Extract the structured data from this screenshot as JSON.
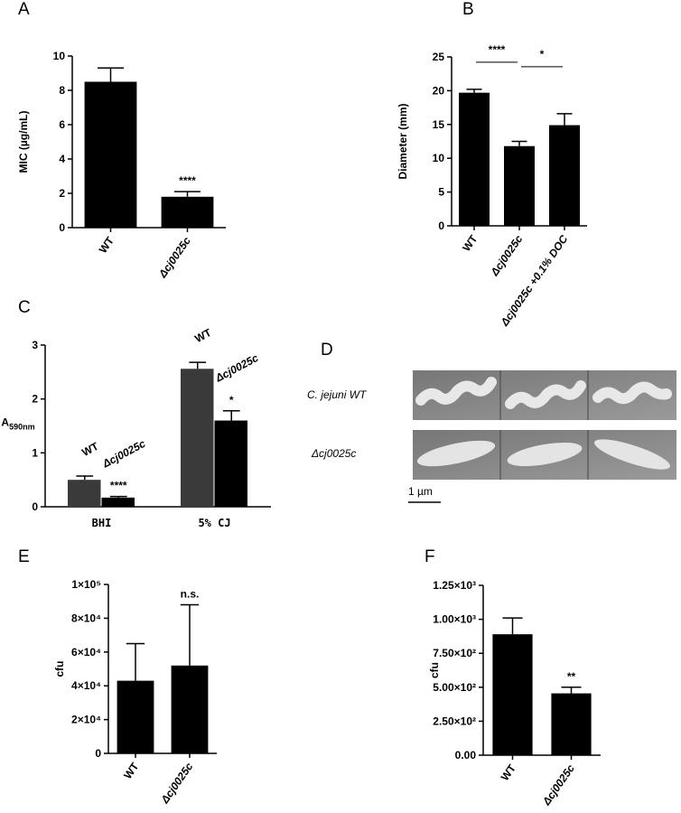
{
  "chart_data": [
    {
      "type": "bar",
      "panel": "A",
      "ylabel": "MIC (µg/mL)",
      "categories": [
        "WT",
        "Δcj0025c"
      ],
      "values": [
        8.5,
        1.8
      ],
      "errors": [
        0.8,
        0.3
      ],
      "color": "#000000",
      "ylim": [
        0,
        10
      ],
      "yticks": [
        0,
        2,
        4,
        6,
        8,
        10
      ],
      "significance": [
        null,
        "****"
      ]
    },
    {
      "type": "bar",
      "panel": "B",
      "ylabel": "Diameter (mm)",
      "categories": [
        "WT",
        "Δcj0025c",
        "Δcj0025c +0.1% DOC"
      ],
      "values": [
        19.7,
        11.8,
        14.9
      ],
      "errors": [
        0.5,
        0.7,
        1.7
      ],
      "color": "#000000",
      "ylim": [
        0,
        25
      ],
      "yticks": [
        0,
        5,
        10,
        15,
        20,
        25
      ],
      "comparisons": [
        "****",
        "*"
      ]
    },
    {
      "type": "grouped_bar",
      "panel": "C",
      "ylabel": "A",
      "ylabel_sub": "590nm",
      "categories": [
        "BHI",
        "5% CJ"
      ],
      "series": [
        {
          "name": "WT",
          "color": "#3a3a3a",
          "values": [
            0.5,
            2.56
          ],
          "errors": [
            0.07,
            0.12
          ]
        },
        {
          "name": "Δcj0025c",
          "color": "#000000",
          "values": [
            0.17,
            1.6
          ],
          "errors": [
            0.02,
            0.18
          ]
        }
      ],
      "ylim": [
        0,
        3
      ],
      "yticks": [
        0,
        1,
        2,
        3
      ],
      "significance": [
        "****",
        "*"
      ]
    },
    {
      "type": "bar",
      "panel": "E",
      "ylabel": "cfu",
      "categories": [
        "WT",
        "Δcj0025c"
      ],
      "values": [
        43000,
        52000
      ],
      "errors": [
        22000,
        36000
      ],
      "color": "#000000",
      "ylim": [
        0,
        100000
      ],
      "yticks": [
        0,
        {
          "value": 20000,
          "label": "2×10⁴"
        },
        {
          "value": 40000,
          "label": "4×10⁴"
        },
        {
          "value": 60000,
          "label": "6×10⁴"
        },
        {
          "value": 80000,
          "label": "8×10⁴"
        },
        {
          "value": 100000,
          "label": "1×10⁵"
        }
      ],
      "significance": [
        null,
        "n.s."
      ]
    },
    {
      "type": "bar",
      "panel": "F",
      "ylabel": "cfu",
      "categories": [
        "WT",
        "Δcj0025c"
      ],
      "values": [
        890,
        455
      ],
      "errors": [
        120,
        45
      ],
      "color": "#000000",
      "ylim": [
        0,
        1250
      ],
      "yticks": [
        {
          "value": 0,
          "label": "0.00"
        },
        {
          "value": 250,
          "label": "2.50×10²"
        },
        {
          "value": 500,
          "label": "5.00×10²"
        },
        {
          "value": 750,
          "label": "7.50×10²"
        },
        {
          "value": 1000,
          "label": "1.00×10³"
        },
        {
          "value": 1250,
          "label": "1.25×10³"
        }
      ],
      "significance": [
        null,
        "**"
      ]
    }
  ],
  "micrograph": {
    "panel": "D",
    "rows": [
      "C. jejuni WT",
      "Δcj0025c"
    ],
    "scale_bar": "1 µm"
  }
}
